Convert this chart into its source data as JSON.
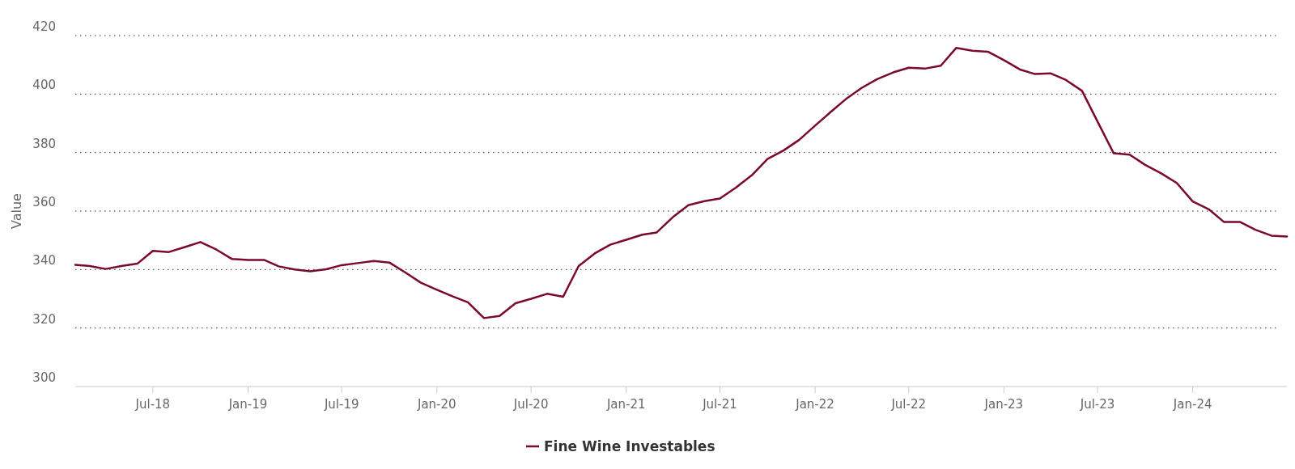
{
  "chart_data": {
    "type": "line",
    "ylabel": "Value",
    "x": [
      "2018-02",
      "2018-03",
      "2018-04",
      "2018-05",
      "2018-06",
      "2018-07",
      "2018-08",
      "2018-09",
      "2018-10",
      "2018-11",
      "2018-12",
      "2019-01",
      "2019-02",
      "2019-03",
      "2019-04",
      "2019-05",
      "2019-06",
      "2019-07",
      "2019-08",
      "2019-09",
      "2019-10",
      "2019-11",
      "2019-12",
      "2020-01",
      "2020-02",
      "2020-03",
      "2020-04",
      "2020-05",
      "2020-06",
      "2020-07",
      "2020-08",
      "2020-09",
      "2020-10",
      "2020-11",
      "2020-12",
      "2021-01",
      "2021-02",
      "2021-03",
      "2021-04",
      "2021-05",
      "2021-06",
      "2021-07",
      "2021-08",
      "2021-09",
      "2021-10",
      "2021-11",
      "2021-12",
      "2022-01",
      "2022-02",
      "2022-03",
      "2022-04",
      "2022-05",
      "2022-06",
      "2022-07",
      "2022-08",
      "2022-09",
      "2022-10",
      "2022-11",
      "2022-12",
      "2023-01",
      "2023-02",
      "2023-03",
      "2023-04",
      "2023-05",
      "2023-06",
      "2023-07",
      "2023-08",
      "2023-09",
      "2023-10",
      "2023-11",
      "2023-12",
      "2024-01",
      "2024-02",
      "2024-03",
      "2024-04",
      "2024-05",
      "2024-06",
      "2024-07"
    ],
    "series": [
      {
        "name": "Fine Wine Investables",
        "color": "#7b0a28",
        "values": [
          341.6,
          341.2,
          340.2,
          341.2,
          342.0,
          346.4,
          346.0,
          347.7,
          349.4,
          346.8,
          343.6,
          343.3,
          343.3,
          341.1,
          340.0,
          339.4,
          340.1,
          341.5,
          342.2,
          342.9,
          342.4,
          339.0,
          335.5,
          333.1,
          330.8,
          328.8,
          323.4,
          324.1,
          328.5,
          330.0,
          331.7,
          330.7,
          341.2,
          345.5,
          348.5,
          350.2,
          351.9,
          352.7,
          357.9,
          362.0,
          363.4,
          364.3,
          368.0,
          372.3,
          377.8,
          380.7,
          384.3,
          389.2,
          394.0,
          398.2,
          402.1,
          405.1,
          407.4,
          409.0,
          408.7,
          409.7,
          415.8,
          414.8,
          414.5,
          411.6,
          408.4,
          406.9,
          407.1,
          404.8,
          401.1,
          390.6,
          379.8,
          379.3,
          375.8,
          372.9,
          369.6,
          363.3,
          360.6,
          356.3,
          356.3,
          353.6,
          351.6,
          351.3
        ]
      }
    ],
    "xlim": [
      "2018-02",
      "2024-07"
    ],
    "xticks": [
      {
        "value": "2018-07",
        "label": "Jul-18"
      },
      {
        "value": "2019-01",
        "label": "Jan-19"
      },
      {
        "value": "2019-07",
        "label": "Jul-19"
      },
      {
        "value": "2020-01",
        "label": "Jan-20"
      },
      {
        "value": "2020-07",
        "label": "Jul-20"
      },
      {
        "value": "2021-01",
        "label": "Jan-21"
      },
      {
        "value": "2021-07",
        "label": "Jul-21"
      },
      {
        "value": "2022-01",
        "label": "Jan-22"
      },
      {
        "value": "2022-07",
        "label": "Jul-22"
      },
      {
        "value": "2023-01",
        "label": "Jan-23"
      },
      {
        "value": "2023-07",
        "label": "Jul-23"
      },
      {
        "value": "2024-01",
        "label": "Jan-24"
      }
    ],
    "ylim": [
      300,
      420
    ],
    "yticks": [
      300,
      320,
      340,
      360,
      380,
      400,
      420
    ],
    "grid": "y",
    "legend": "bottom",
    "marker": "none",
    "line_style": "solid"
  }
}
